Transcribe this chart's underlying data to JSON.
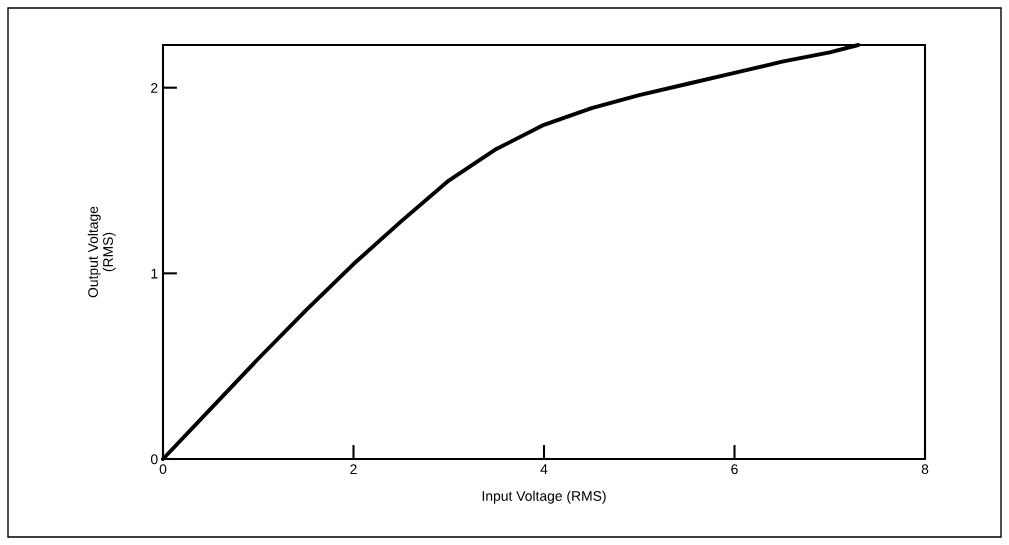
{
  "chart_data": {
    "type": "line",
    "xlabel": "Input Voltage (RMS)",
    "ylabel": "Output Voltage\n(RMS)",
    "x": [
      0,
      0.5,
      1,
      1.5,
      2,
      2.5,
      3,
      3.5,
      4,
      4.5,
      5,
      5.5,
      6,
      6.5,
      7,
      7.3
    ],
    "series": [
      {
        "color": "#000000",
        "values": [
          0,
          0.27,
          0.54,
          0.8,
          1.05,
          1.28,
          1.5,
          1.67,
          1.8,
          1.89,
          1.96,
          2.02,
          2.08,
          2.14,
          2.19,
          2.23
        ]
      }
    ],
    "xlim": [
      0,
      8
    ],
    "ylim": [
      0,
      2.23
    ],
    "xticks": [
      0,
      2,
      4,
      6,
      8
    ],
    "yticks": [
      0,
      1,
      2
    ],
    "grid": false,
    "legend": false,
    "marker": "none",
    "line_style": "solid"
  }
}
